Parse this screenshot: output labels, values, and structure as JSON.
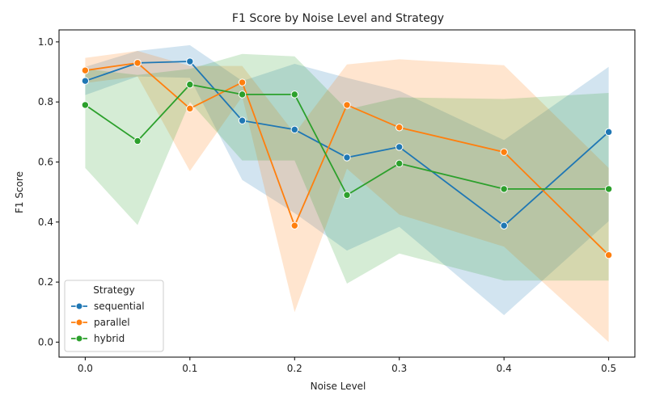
{
  "chart_data": {
    "type": "line",
    "title": "F1 Score by Noise Level and Strategy",
    "xlabel": "Noise Level",
    "ylabel": "F1 Score",
    "xlim": [
      -0.025,
      0.525
    ],
    "ylim": [
      -0.05,
      1.04
    ],
    "xticks": [
      0.0,
      0.1,
      0.2,
      0.3,
      0.4,
      0.5
    ],
    "xtick_labels": [
      "0.0",
      "0.1",
      "0.2",
      "0.3",
      "0.4",
      "0.5"
    ],
    "yticks": [
      0.0,
      0.2,
      0.4,
      0.6,
      0.8,
      1.0
    ],
    "ytick_labels": [
      "0.0",
      "0.2",
      "0.4",
      "0.6",
      "0.8",
      "1.0"
    ],
    "grid": false,
    "legend": {
      "title": "Strategy",
      "placement": "lower-left"
    },
    "series": [
      {
        "name": "sequential",
        "color": "#1f77b4",
        "x": [
          0.0,
          0.05,
          0.1,
          0.15,
          0.2,
          0.25,
          0.3,
          0.4,
          0.5
        ],
        "y": [
          0.87,
          0.93,
          0.935,
          0.738,
          0.708,
          0.615,
          0.65,
          0.388,
          0.7
        ],
        "lower": [
          0.823,
          0.885,
          0.88,
          0.54,
          0.43,
          0.305,
          0.384,
          0.09,
          0.403
        ],
        "upper": [
          0.917,
          0.97,
          0.989,
          0.87,
          0.927,
          0.88,
          0.837,
          0.673,
          0.917
        ]
      },
      {
        "name": "parallel",
        "color": "#ff7f0e",
        "x": [
          0.0,
          0.05,
          0.1,
          0.15,
          0.2,
          0.25,
          0.3,
          0.4,
          0.5
        ],
        "y": [
          0.905,
          0.93,
          0.778,
          0.865,
          0.388,
          0.79,
          0.715,
          0.633,
          0.29
        ],
        "lower": [
          0.863,
          0.885,
          0.57,
          0.818,
          0.1,
          0.578,
          0.425,
          0.318,
          0.0
        ],
        "upper": [
          0.947,
          0.97,
          0.92,
          0.92,
          0.695,
          0.925,
          0.942,
          0.922,
          0.58
        ]
      },
      {
        "name": "hybrid",
        "color": "#2ca02c",
        "x": [
          0.0,
          0.05,
          0.1,
          0.15,
          0.2,
          0.25,
          0.3,
          0.4,
          0.5
        ],
        "y": [
          0.79,
          0.67,
          0.858,
          0.825,
          0.825,
          0.49,
          0.595,
          0.51,
          0.51
        ],
        "lower": [
          0.58,
          0.39,
          0.8,
          0.605,
          0.605,
          0.195,
          0.295,
          0.205,
          0.205
        ],
        "upper": [
          0.91,
          0.89,
          0.91,
          0.96,
          0.952,
          0.775,
          0.815,
          0.81,
          0.83
        ]
      }
    ]
  }
}
